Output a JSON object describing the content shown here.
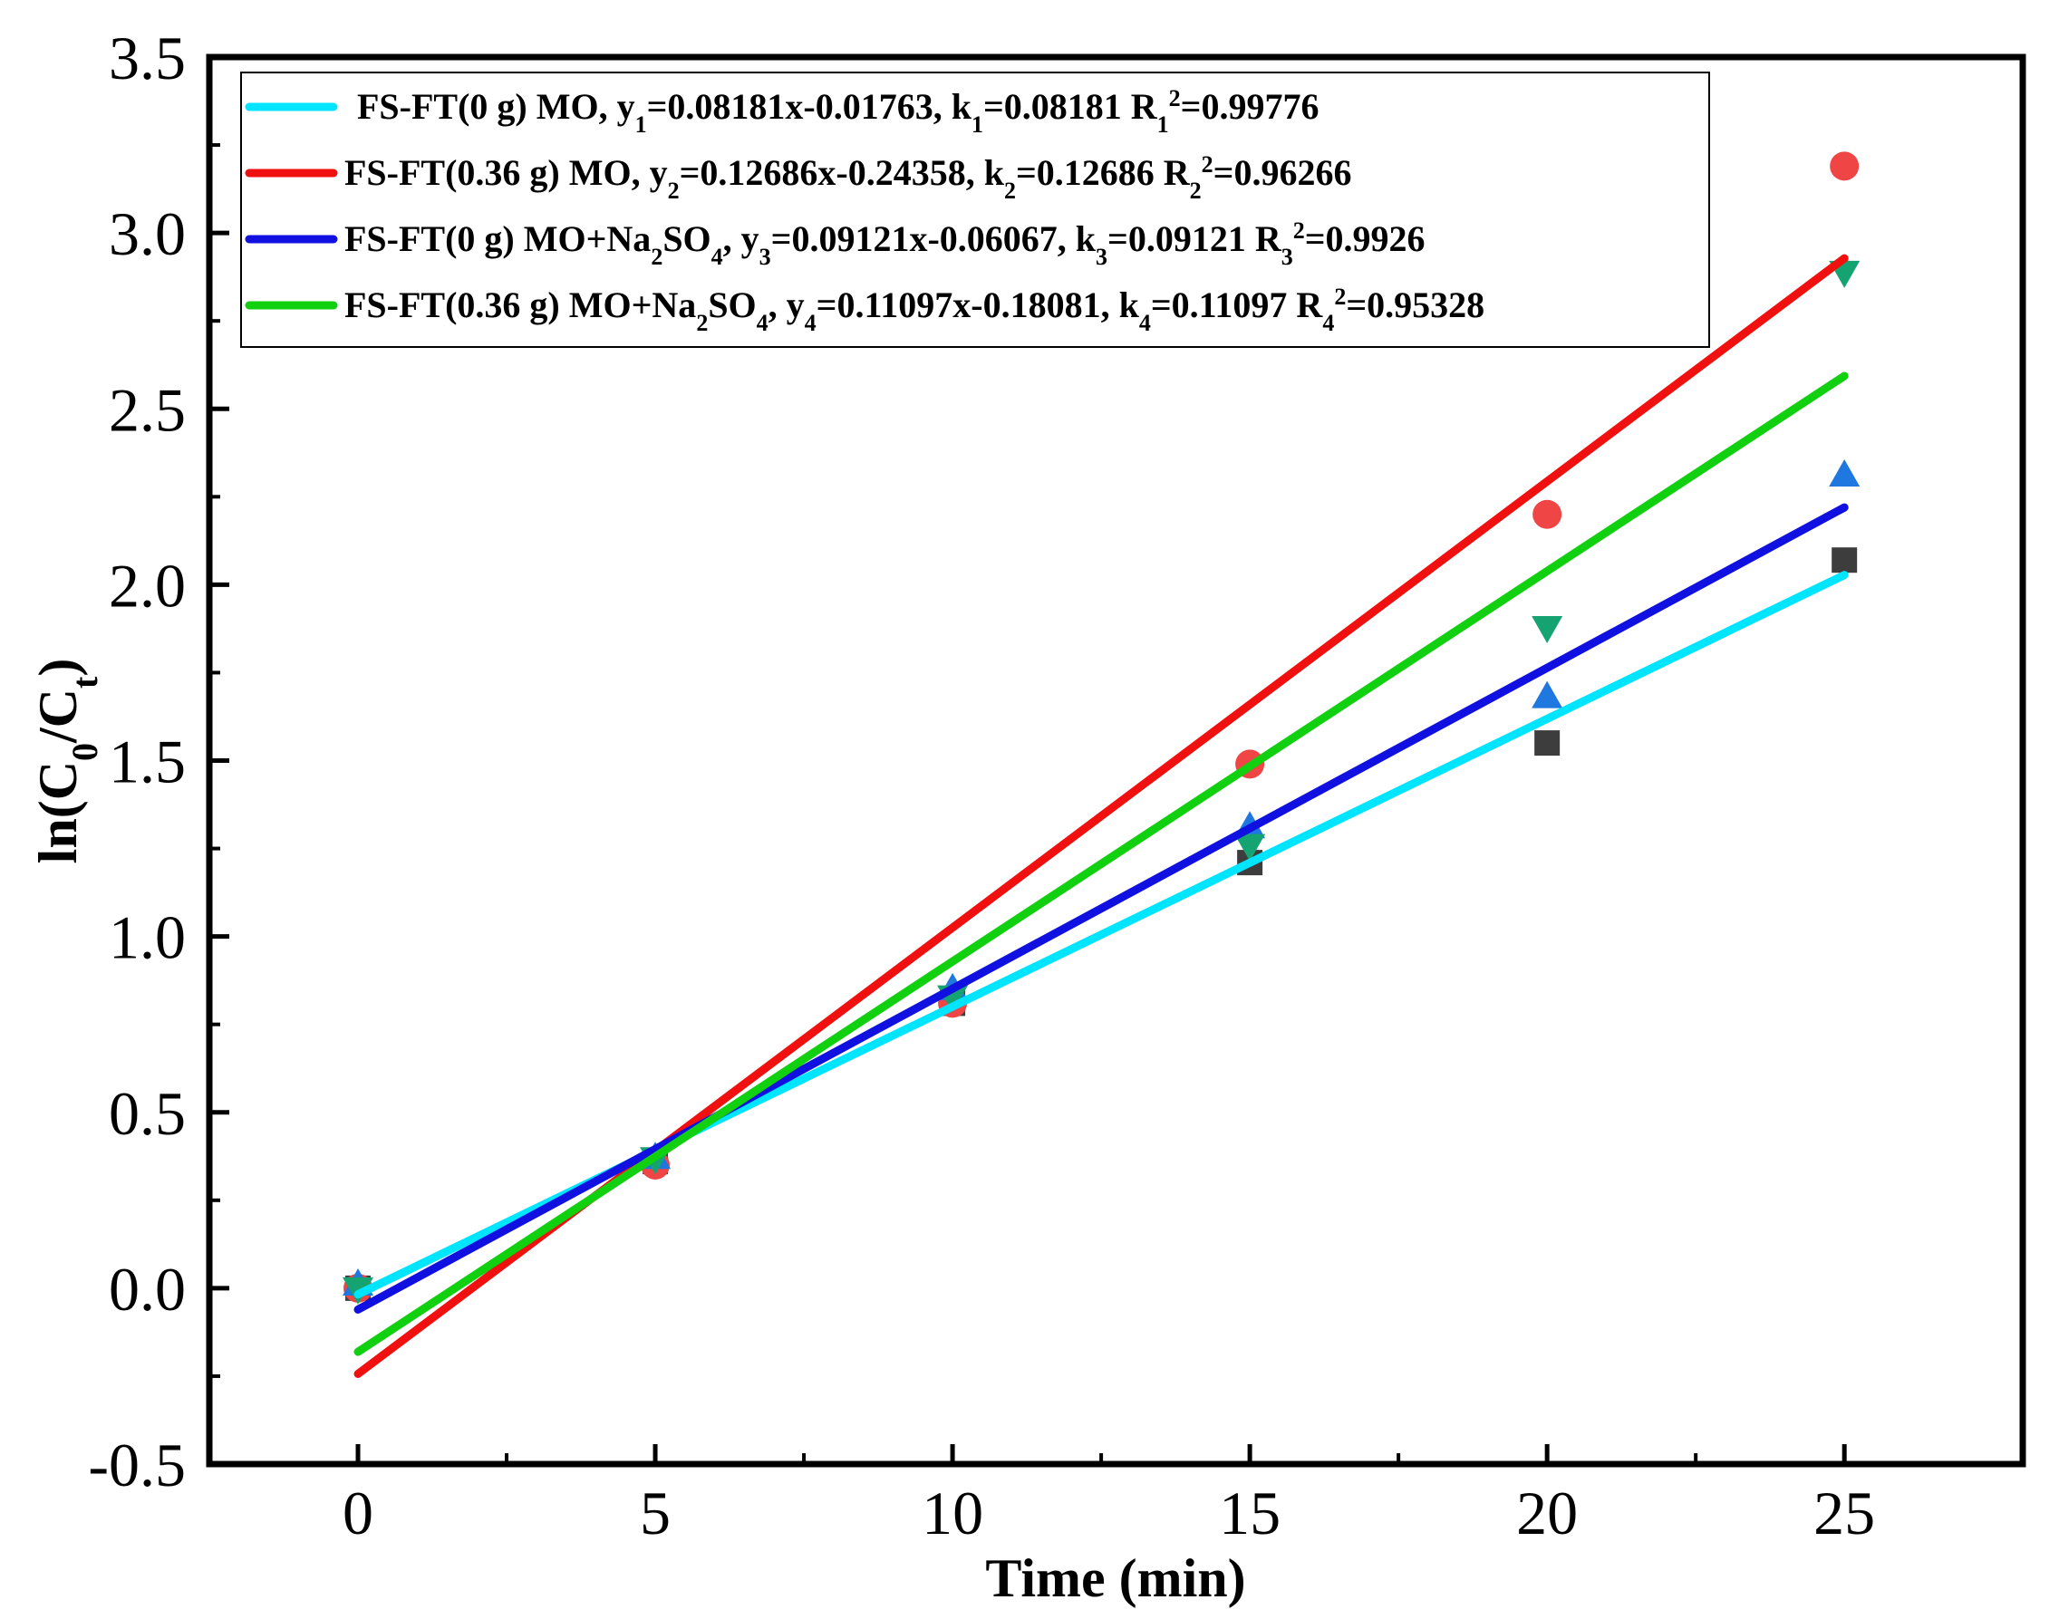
{
  "chart_data": {
    "type": "scatter",
    "title": "",
    "xlabel": "Time (min)",
    "ylabel": "ln(C0/Ct)",
    "xlim": [
      -2.5,
      28
    ],
    "ylim": [
      -0.5,
      3.5
    ],
    "xticks": [
      0,
      5,
      10,
      15,
      20,
      25
    ],
    "xtick_labels": [
      "0",
      "5",
      "10",
      "15",
      "20",
      "25"
    ],
    "yticks": [
      -0.5,
      0,
      0.5,
      1,
      1.5,
      2,
      2.5,
      3,
      3.5
    ],
    "ytick_labels": [
      "-0.5",
      "0.0",
      "0.5",
      "1.0",
      "1.5",
      "2.0",
      "2.5",
      "3.0",
      "3.5"
    ],
    "legend_position": "top-left",
    "series": [
      {
        "name": "FS-FT(0 g) MO",
        "marker": "square",
        "marker_color": "#3d3d3d",
        "line_color": "#00e5ff",
        "x": [
          0,
          5,
          10,
          15,
          20,
          25
        ],
        "y": [
          0,
          0.36,
          0.81,
          1.21,
          1.55,
          2.07
        ],
        "fit": {
          "slope": 0.08181,
          "intercept": -0.01763,
          "x_range": [
            0,
            25
          ]
        },
        "legend_parts": [
          {
            "t": "FS-FT(0 g) MO, y"
          },
          {
            "t": "1",
            "s": "sub"
          },
          {
            "t": "=0.08181x-0.01763, k"
          },
          {
            "t": "1",
            "s": "sub"
          },
          {
            "t": "=0.08181 R"
          },
          {
            "t": "1",
            "s": "sub"
          },
          {
            "t": "2",
            "s": "sup"
          },
          {
            "t": "=0.99776"
          }
        ]
      },
      {
        "name": "FS-FT(0.36 g) MO",
        "marker": "circle",
        "marker_color": "#f04545",
        "line_color": "#f01010",
        "x": [
          0,
          5,
          10,
          15,
          20,
          25
        ],
        "y": [
          0,
          0.35,
          0.81,
          1.49,
          2.2,
          3.19
        ],
        "fit": {
          "slope": 0.12686,
          "intercept": -0.24358,
          "x_range": [
            0,
            25
          ]
        },
        "legend_parts": [
          {
            "t": "FS-FT(0.36 g) MO, y"
          },
          {
            "t": "2",
            "s": "sub"
          },
          {
            "t": "=0.12686x-0.24358, k"
          },
          {
            "t": "2",
            "s": "sub"
          },
          {
            "t": "=0.12686 R"
          },
          {
            "t": "2",
            "s": "sub"
          },
          {
            "t": "2",
            "s": "sup"
          },
          {
            "t": "=0.96266"
          }
        ]
      },
      {
        "name": "FS-FT(0 g) MO+Na2SO4",
        "marker": "triangle-up",
        "marker_color": "#1f78e0",
        "line_color": "#1010e0",
        "x": [
          0,
          5,
          10,
          15,
          20,
          25
        ],
        "y": [
          0.01,
          0.37,
          0.85,
          1.31,
          1.68,
          2.31
        ],
        "fit": {
          "slope": 0.09121,
          "intercept": -0.06067,
          "x_range": [
            0,
            25
          ]
        },
        "legend_parts": [
          {
            "t": "FS-FT(0 g) MO+Na"
          },
          {
            "t": "2",
            "s": "sub"
          },
          {
            "t": "SO"
          },
          {
            "t": "4",
            "s": "sub"
          },
          {
            "t": ", y"
          },
          {
            "t": "3",
            "s": "sub"
          },
          {
            "t": "=0.09121x-0.06067, k"
          },
          {
            "t": "3",
            "s": "sub"
          },
          {
            "t": "=0.09121 R"
          },
          {
            "t": "3",
            "s": "sub"
          },
          {
            "t": "2",
            "s": "sup"
          },
          {
            "t": "=0.9926"
          }
        ]
      },
      {
        "name": "FS-FT(0.36 g) MO+Na2SO4",
        "marker": "triangle-down",
        "marker_color": "#16a372",
        "line_color": "#10d010",
        "x": [
          0,
          5,
          10,
          15,
          20,
          25
        ],
        "y": [
          0,
          0.37,
          0.83,
          1.26,
          1.88,
          2.89
        ],
        "fit": {
          "slope": 0.11097,
          "intercept": -0.18081,
          "x_range": [
            0,
            25
          ]
        },
        "legend_parts": [
          {
            "t": "FS-FT(0.36 g) MO+Na"
          },
          {
            "t": "2",
            "s": "sub"
          },
          {
            "t": "SO"
          },
          {
            "t": "4",
            "s": "sub"
          },
          {
            "t": ", y"
          },
          {
            "t": "4",
            "s": "sub"
          },
          {
            "t": "=0.11097x-0.18081, k"
          },
          {
            "t": "4",
            "s": "sub"
          },
          {
            "t": "=0.11097 R"
          },
          {
            "t": "4",
            "s": "sub"
          },
          {
            "t": "2",
            "s": "sup"
          },
          {
            "t": "=0.95328"
          }
        ]
      }
    ]
  }
}
